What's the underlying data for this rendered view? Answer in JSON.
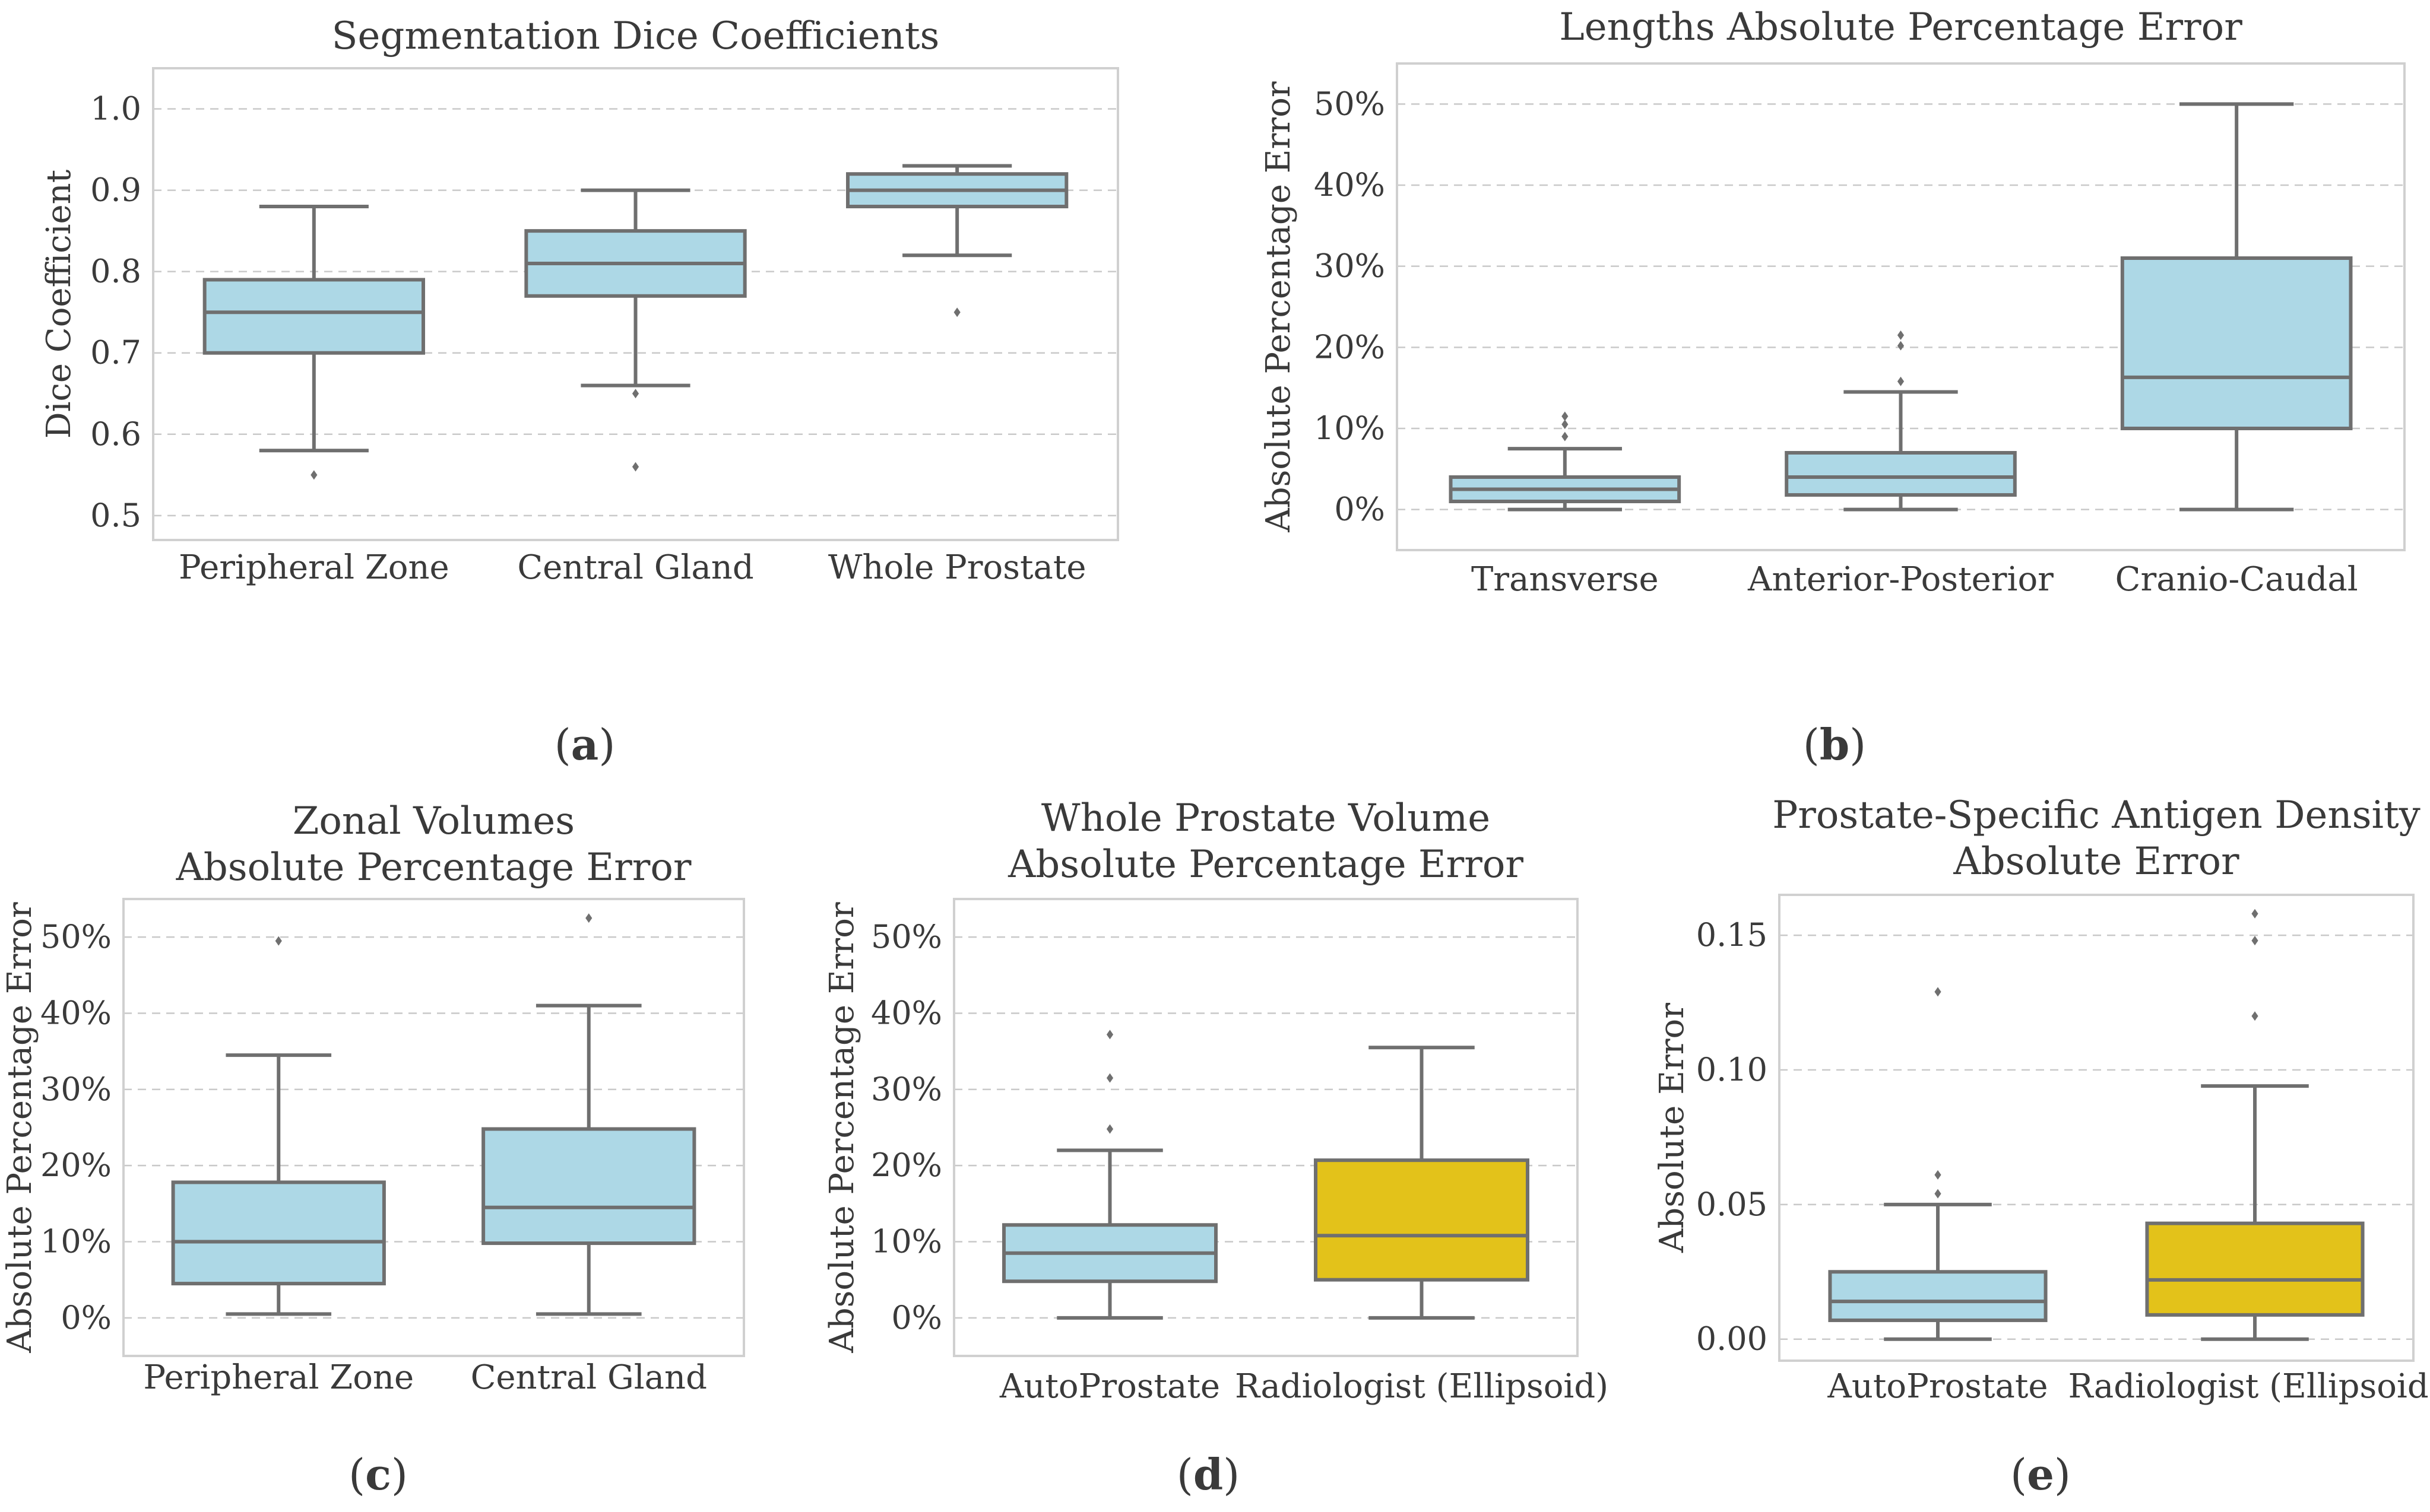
{
  "chart_data": [
    {
      "id": "a",
      "type": "box",
      "title": "Segmentation Dice Coefficients",
      "ylabel": "Dice Coefficient",
      "ylim": [
        0.47,
        1.05
      ],
      "yticks": [
        0.5,
        0.6,
        0.7,
        0.8,
        0.9,
        1.0
      ],
      "ytick_labels": [
        "0.5",
        "0.6",
        "0.7",
        "0.8",
        "0.9",
        "1.0"
      ],
      "grid": true,
      "categories": [
        "Peripheral Zone",
        "Central Gland",
        "Whole Prostate"
      ],
      "boxes": [
        {
          "category": "Peripheral Zone",
          "whisker_low": 0.58,
          "q1": 0.7,
          "median": 0.75,
          "q3": 0.79,
          "whisker_high": 0.88,
          "fliers": [
            0.55
          ],
          "color": "#add8e6"
        },
        {
          "category": "Central Gland",
          "whisker_low": 0.66,
          "q1": 0.77,
          "median": 0.81,
          "q3": 0.85,
          "whisker_high": 0.9,
          "fliers": [
            0.65,
            0.56
          ],
          "color": "#add8e6"
        },
        {
          "category": "Whole Prostate",
          "whisker_low": 0.82,
          "q1": 0.88,
          "median": 0.9,
          "q3": 0.92,
          "whisker_high": 0.93,
          "fliers": [
            0.75
          ],
          "color": "#add8e6"
        }
      ],
      "panel_label": "a"
    },
    {
      "id": "b",
      "type": "box",
      "title": "Lengths Absolute Percentage Error",
      "ylabel": "Absolute Percentage Error",
      "ylim": [
        -5,
        55
      ],
      "yticks": [
        0,
        10,
        20,
        30,
        40,
        50
      ],
      "ytick_labels": [
        "0%",
        "10%",
        "20%",
        "30%",
        "40%",
        "50%"
      ],
      "grid": true,
      "categories": [
        "Transverse",
        "Anterior-Posterior",
        "Cranio-Caudal"
      ],
      "boxes": [
        {
          "category": "Transverse",
          "whisker_low": 0,
          "q1": 1,
          "median": 2.5,
          "q3": 4,
          "whisker_high": 7.5,
          "fliers": [
            9,
            10.5,
            11.5
          ],
          "color": "#add8e6"
        },
        {
          "category": "Anterior-Posterior",
          "whisker_low": 0,
          "q1": 1.8,
          "median": 4,
          "q3": 7,
          "whisker_high": 14.5,
          "fliers": [
            15.8,
            20.2,
            21.5
          ],
          "color": "#add8e6"
        },
        {
          "category": "Cranio-Caudal",
          "whisker_low": 0,
          "q1": 10,
          "median": 16.3,
          "q3": 31,
          "whisker_high": 50,
          "fliers": [],
          "color": "#add8e6"
        }
      ],
      "panel_label": "b"
    },
    {
      "id": "c",
      "type": "box",
      "title": [
        "Zonal Volumes",
        "Absolute Percentage Error"
      ],
      "ylabel": "Absolute Percentage Error",
      "ylim": [
        -5,
        55
      ],
      "yticks": [
        0,
        10,
        20,
        30,
        40,
        50
      ],
      "ytick_labels": [
        "0%",
        "10%",
        "20%",
        "30%",
        "40%",
        "50%"
      ],
      "grid": true,
      "categories": [
        "Peripheral Zone",
        "Central Gland"
      ],
      "boxes": [
        {
          "category": "Peripheral Zone",
          "whisker_low": 0.5,
          "q1": 4.5,
          "median": 10,
          "q3": 17.8,
          "whisker_high": 34.5,
          "fliers": [
            49.5
          ],
          "color": "#add8e6"
        },
        {
          "category": "Central Gland",
          "whisker_low": 0.5,
          "q1": 9.8,
          "median": 14.5,
          "q3": 24.8,
          "whisker_high": 41,
          "fliers": [
            52.5
          ],
          "color": "#add8e6"
        }
      ],
      "panel_label": "c"
    },
    {
      "id": "d",
      "type": "box",
      "title": [
        "Whole Prostate Volume",
        "Absolute Percentage Error"
      ],
      "ylabel": "Absolute Percentage Error",
      "ylim": [
        -5,
        55
      ],
      "yticks": [
        0,
        10,
        20,
        30,
        40,
        50
      ],
      "ytick_labels": [
        "0%",
        "10%",
        "20%",
        "30%",
        "40%",
        "50%"
      ],
      "grid": true,
      "categories": [
        "AutoProstate",
        "Radiologist (Ellipsoid)"
      ],
      "boxes": [
        {
          "category": "AutoProstate",
          "whisker_low": 0,
          "q1": 4.8,
          "median": 8.5,
          "q3": 12.2,
          "whisker_high": 22,
          "fliers": [
            24.8,
            31.5,
            37.2
          ],
          "color": "#add8e6"
        },
        {
          "category": "Radiologist (Ellipsoid)",
          "whisker_low": 0,
          "q1": 5,
          "median": 10.8,
          "q3": 20.7,
          "whisker_high": 35.5,
          "fliers": [],
          "color": "#e3c21a"
        }
      ],
      "panel_label": "d"
    },
    {
      "id": "e",
      "type": "box",
      "title": [
        "Prostate-Specific Antigen Density",
        "Absolute Error"
      ],
      "ylabel": "Absolute Error",
      "ylim": [
        -0.008,
        0.165
      ],
      "yticks": [
        0.0,
        0.05,
        0.1,
        0.15
      ],
      "ytick_labels": [
        "0.00",
        "0.05",
        "0.10",
        "0.15"
      ],
      "grid": true,
      "categories": [
        "AutoProstate",
        "Radiologist (Ellipsoid)"
      ],
      "boxes": [
        {
          "category": "AutoProstate",
          "whisker_low": 0,
          "q1": 0.007,
          "median": 0.014,
          "q3": 0.025,
          "whisker_high": 0.05,
          "fliers": [
            0.054,
            0.061,
            0.129
          ],
          "color": "#add8e6"
        },
        {
          "category": "Radiologist (Ellipsoid)",
          "whisker_low": 0,
          "q1": 0.009,
          "median": 0.022,
          "q3": 0.043,
          "whisker_high": 0.094,
          "fliers": [
            0.12,
            0.148,
            0.158
          ],
          "color": "#e3c21a"
        }
      ],
      "panel_label": "e"
    }
  ]
}
